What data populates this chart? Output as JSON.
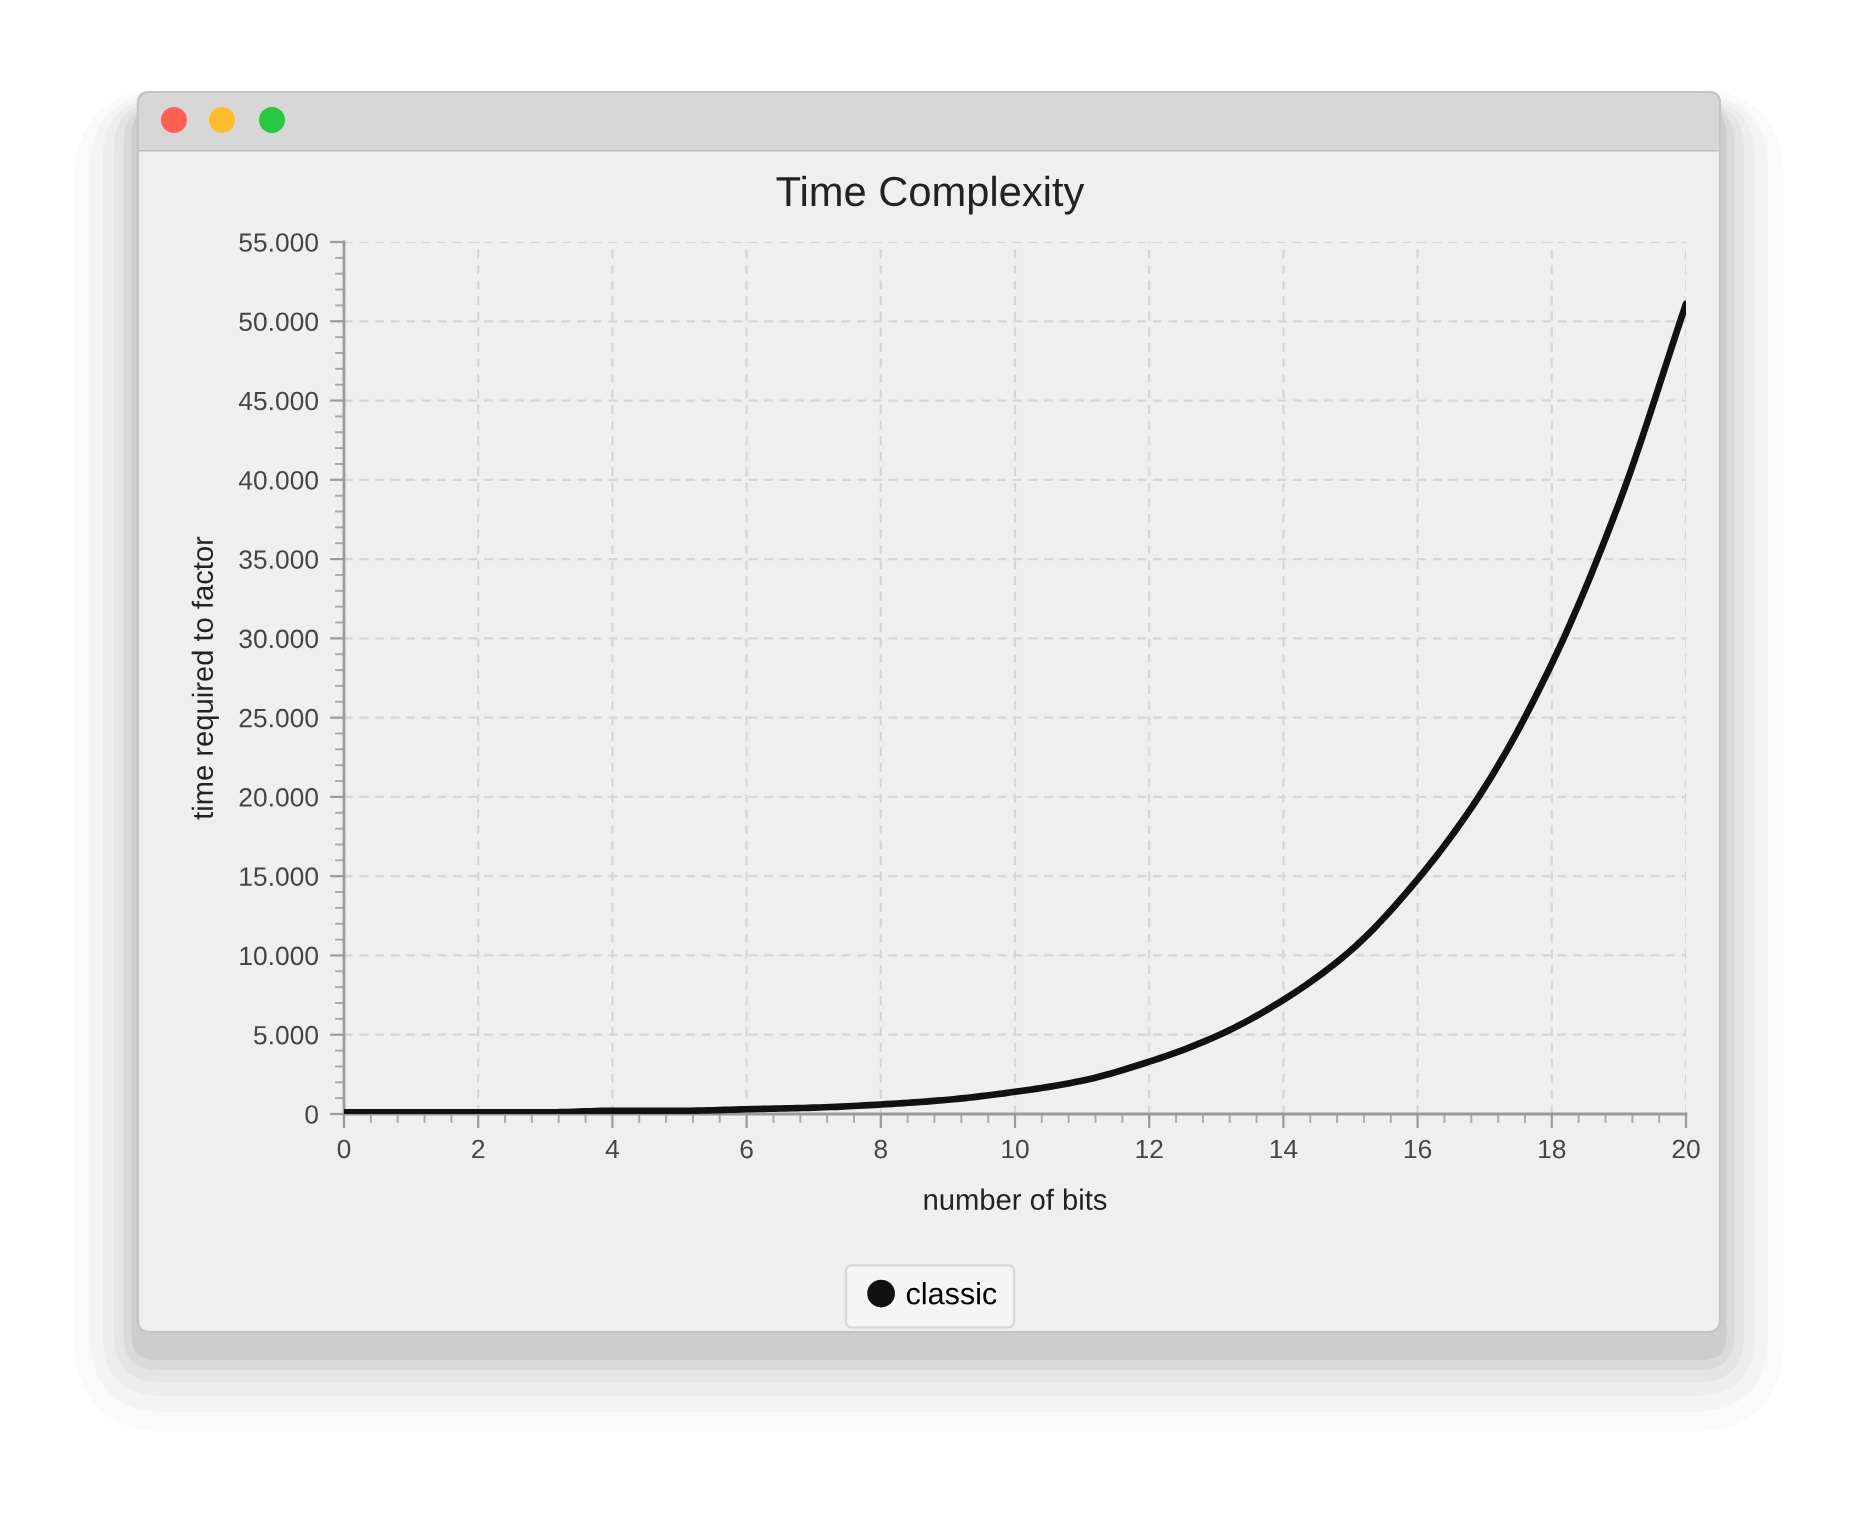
{
  "chart_data": {
    "type": "line",
    "title": "Time Complexity",
    "xlabel": "number of bits",
    "ylabel": "time required to factor",
    "x": [
      0,
      1,
      2,
      3,
      4,
      5,
      6,
      7,
      8,
      9,
      10,
      11,
      12,
      13,
      14,
      15,
      16,
      17,
      18,
      19,
      20
    ],
    "series": [
      {
        "name": "classic",
        "color": "#111111",
        "values": [
          100,
          100,
          100,
          100,
          200,
          200,
          300,
          400,
          600,
          900,
          1400,
          2100,
          3300,
          4900,
          7200,
          10300,
          14800,
          20600,
          28400,
          38500,
          51100
        ]
      }
    ],
    "xlim": [
      0,
      20
    ],
    "xticks": [
      0,
      2,
      4,
      6,
      8,
      10,
      12,
      14,
      16,
      18,
      20
    ],
    "ylim": [
      0,
      55000
    ],
    "yticks": [
      0,
      {
        "value": 5000,
        "label": "5.000"
      },
      {
        "value": 10000,
        "label": "10.000"
      },
      {
        "value": 15000,
        "label": "15.000"
      },
      {
        "value": 20000,
        "label": "20.000"
      },
      {
        "value": 25000,
        "label": "25.000"
      },
      {
        "value": 30000,
        "label": "30.000"
      },
      {
        "value": 35000,
        "label": "35.000"
      },
      {
        "value": 40000,
        "label": "40.000"
      },
      {
        "value": 45000,
        "label": "45.000"
      },
      {
        "value": 50000,
        "label": "50.000"
      },
      {
        "value": 55000,
        "label": "55.000"
      }
    ],
    "grid": true,
    "legend": "bottom",
    "line_style": "solid"
  }
}
